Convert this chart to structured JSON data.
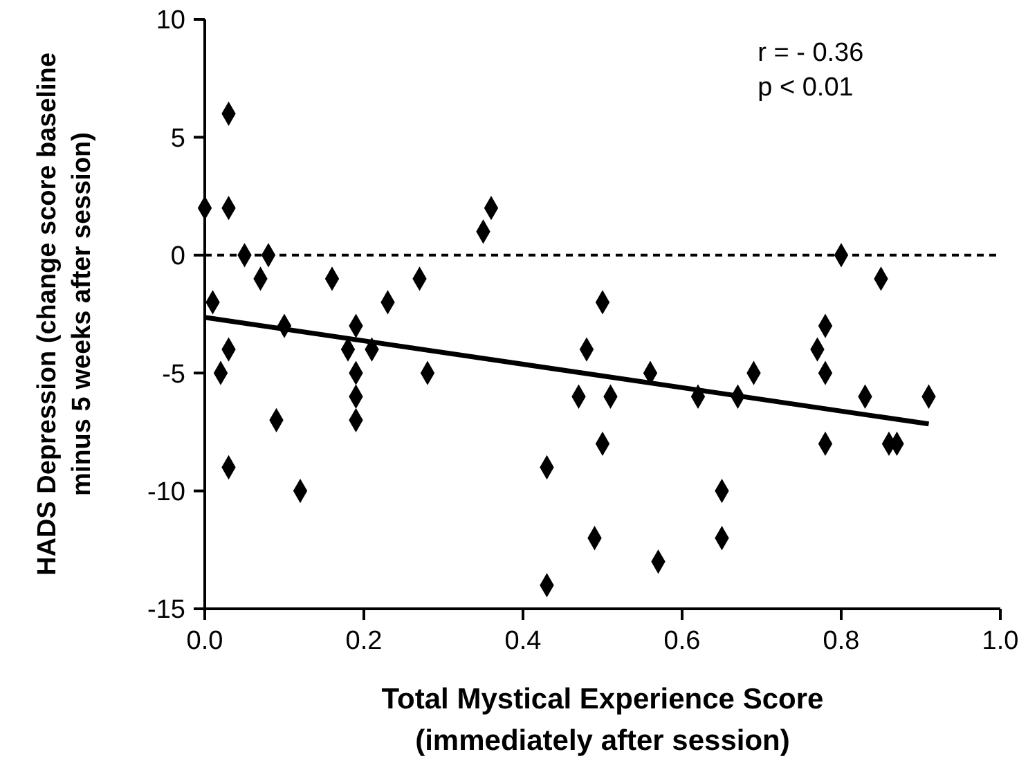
{
  "chart_data": {
    "type": "scatter",
    "xlabel": "Total Mystical Experience Score\n(immediately after session)",
    "ylabel": "HADS Depression (change score baseline\nminus 5 weeks after session)",
    "xlim": [
      0,
      1
    ],
    "ylim": [
      -15,
      10
    ],
    "xticks": [
      {
        "value": 0,
        "label": "0.0"
      },
      {
        "value": 0.2,
        "label": "0.2"
      },
      {
        "value": 0.4,
        "label": "0.4"
      },
      {
        "value": 0.6,
        "label": "0.6"
      },
      {
        "value": 0.8,
        "label": "0.8"
      },
      {
        "value": 1,
        "label": "1.0"
      }
    ],
    "yticks": [
      -15,
      -10,
      -5,
      0,
      5,
      10
    ],
    "grid": false,
    "marker": "diamond",
    "ref_lines": [
      {
        "axis": "y",
        "value": 0,
        "line_style": "dashed",
        "color": "#000000"
      }
    ],
    "annotations": [
      "r = - 0.36",
      "p < 0.01"
    ],
    "series": [
      {
        "color": "#000000",
        "x": [
          0,
          0.03,
          0.03,
          0.05,
          0.08,
          0.07,
          0.01,
          0.1,
          0.03,
          0.02,
          0.09,
          0.03,
          0.12,
          0.16,
          0.19,
          0.18,
          0.21,
          0.19,
          0.19,
          0.19,
          0.23,
          0.27,
          0.28,
          0.35,
          0.36,
          0.43,
          0.43,
          0.47,
          0.48,
          0.49,
          0.5,
          0.5,
          0.51,
          0.56,
          0.57,
          0.62,
          0.65,
          0.65,
          0.67,
          0.69,
          0.77,
          0.78,
          0.78,
          0.78,
          0.8,
          0.83,
          0.85,
          0.86,
          0.87,
          0.91
        ],
        "values": [
          2,
          6,
          2,
          0,
          0,
          -1,
          -2,
          -3,
          -4,
          -5,
          -7,
          -9,
          -10,
          -1,
          -3,
          -4,
          -4,
          -5,
          -6,
          -7,
          -2,
          -1,
          -5,
          1,
          2,
          -9,
          -14,
          -6,
          -4,
          -12,
          -2,
          -8,
          -6,
          -5,
          -13,
          -6,
          -10,
          -12,
          -6,
          -5,
          -4,
          -3,
          -5,
          -8,
          0,
          -6,
          -1,
          -8,
          -8,
          -6
        ]
      },
      {
        "type": "line",
        "color": "#000000",
        "marker": "none",
        "line_style": "solid",
        "x": [
          0,
          0.91
        ],
        "values": [
          -2.64,
          -7.16
        ]
      }
    ]
  }
}
